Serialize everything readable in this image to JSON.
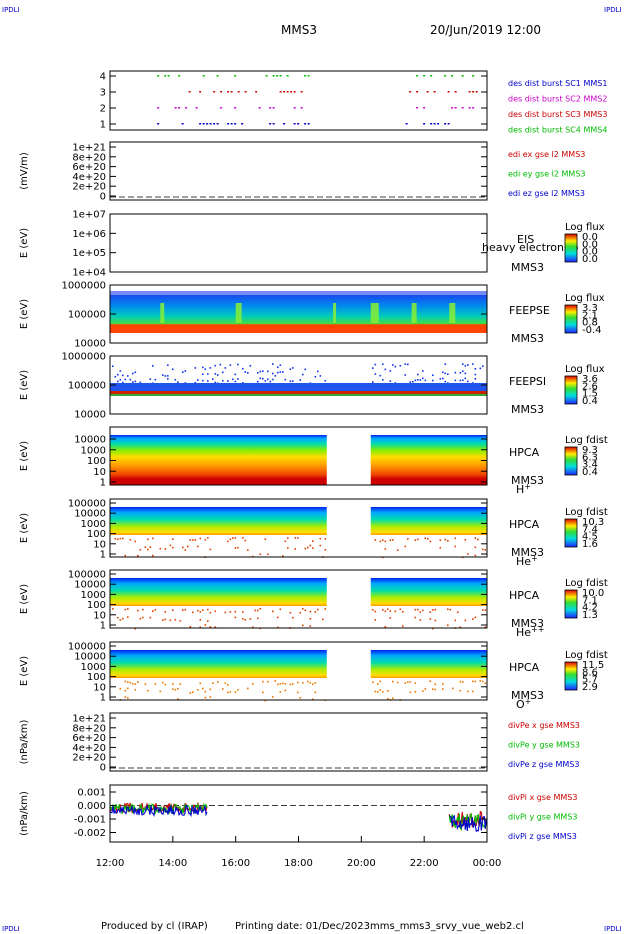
{
  "corner_mark": "IPDLI",
  "header": {
    "title": "MMS3",
    "date": "20/Jun/2019 12:00"
  },
  "footer": {
    "produced": "Produced by cl (IRAP)",
    "printing": "Printing date: 01/Dec/2023",
    "file": "mms_mms3_srvy_vue_web2.cl"
  },
  "chart_data": [
    {
      "type": "scatter",
      "ylabel": "",
      "yticks": [
        "4",
        "3",
        "2",
        "1"
      ],
      "legend": [
        {
          "text": "des dist burst SC1 MMS1",
          "color": "#0000cc"
        },
        {
          "text": "des dist burst SC2 MMS2",
          "color": "#cc00cc"
        },
        {
          "text": "des dist burst SC3 MMS3",
          "color": "#cc0000"
        },
        {
          "text": "des dist burst SC4 MMS4",
          "color": "#00bb00"
        }
      ]
    },
    {
      "type": "line",
      "ylabel": "(mV/m)",
      "yticks": [
        "1e+21",
        "8e+20",
        "6e+20",
        "4e+20",
        "2e+20",
        "0"
      ],
      "legend": [
        {
          "text": "edi ex gse l2 MMS3",
          "color": "#cc0000"
        },
        {
          "text": "edi ey gse l2 MMS3",
          "color": "#00bb00"
        },
        {
          "text": "edi ez gse l2 MMS3",
          "color": "#0000cc"
        }
      ]
    },
    {
      "type": "heatmap",
      "ylabel": "E (eV)",
      "yticks": [
        "1e+07",
        "1e+06",
        "1e+05",
        "1e+04"
      ],
      "labels": [
        "EIS",
        "MMS3"
      ],
      "overlay": "heavy electron to",
      "colorbar": {
        "title": "Log flux",
        "ticks": [
          "0.0",
          "0.0",
          "0.0",
          "0.0"
        ]
      }
    },
    {
      "type": "heatmap",
      "ylabel": "E (eV)",
      "yticks": [
        "1000000",
        "100000",
        "10000"
      ],
      "labels": [
        "FEEPSE",
        "MMS3"
      ],
      "colorbar": {
        "title": "Log flux",
        "ticks": [
          "3.3",
          "2.1",
          "0.8",
          "-0.4"
        ]
      }
    },
    {
      "type": "heatmap",
      "ylabel": "E (eV)",
      "yticks": [
        "1000000",
        "100000",
        "10000"
      ],
      "labels": [
        "FEEPSI",
        "MMS3"
      ],
      "colorbar": {
        "title": "Log flux",
        "ticks": [
          "3.6",
          "2.6",
          "1.5",
          "0.4"
        ]
      }
    },
    {
      "type": "heatmap",
      "ylabel": "E (eV)",
      "yticks": [
        "10000",
        "1000",
        "100",
        "10",
        "1"
      ],
      "labels": [
        "HPCA",
        "MMS3"
      ],
      "species": {
        "base": "H",
        "sup": "+"
      },
      "colorbar": {
        "title": "Log fdist",
        "ticks": [
          "9.3",
          "6.3",
          "3.4",
          "0.4"
        ]
      }
    },
    {
      "type": "heatmap",
      "ylabel": "E (eV)",
      "yticks": [
        "100000",
        "10000",
        "1000",
        "100",
        "10",
        "1"
      ],
      "labels": [
        "HPCA",
        "MMS3"
      ],
      "species": {
        "base": "He",
        "sup": "+"
      },
      "colorbar": {
        "title": "Log fdist",
        "ticks": [
          "10.3",
          "7.4",
          "4.5",
          "1.6"
        ]
      }
    },
    {
      "type": "heatmap",
      "ylabel": "E (eV)",
      "yticks": [
        "100000",
        "10000",
        "1000",
        "100",
        "10",
        "1"
      ],
      "labels": [
        "HPCA",
        "MMS3"
      ],
      "species": {
        "base": "He",
        "sup": "++"
      },
      "colorbar": {
        "title": "Log fdist",
        "ticks": [
          "10.0",
          "7.1",
          "4.2",
          "1.3"
        ]
      }
    },
    {
      "type": "heatmap",
      "ylabel": "E (eV)",
      "yticks": [
        "100000",
        "10000",
        "1000",
        "100",
        "10",
        "1"
      ],
      "labels": [
        "HPCA",
        "MMS3"
      ],
      "species": {
        "base": "O",
        "sup": "+"
      },
      "colorbar": {
        "title": "Log fdist",
        "ticks": [
          "11.5",
          "8.6",
          "5.7",
          "2.9"
        ]
      }
    },
    {
      "type": "line",
      "ylabel": "(nPa/km)",
      "yticks": [
        "1e+21",
        "8e+20",
        "6e+20",
        "4e+20",
        "2e+20",
        "0"
      ],
      "legend": [
        {
          "text": "divPe x gse MMS3",
          "color": "#cc0000"
        },
        {
          "text": "divPe y gse MMS3",
          "color": "#00bb00"
        },
        {
          "text": "divPe z gse MMS3",
          "color": "#0000cc"
        }
      ]
    },
    {
      "type": "line",
      "ylabel": "(nPa/km)",
      "yticks": [
        "0.001",
        "0.000",
        "-0.001",
        "-0.002"
      ],
      "legend": [
        {
          "text": "divPi x gse MMS3",
          "color": "#cc0000"
        },
        {
          "text": "divPi y gse MMS3",
          "color": "#00bb00"
        },
        {
          "text": "divPi z gse MMS3",
          "color": "#0000cc"
        }
      ]
    }
  ],
  "time_axis": {
    "ticks": [
      "12:00",
      "14:00",
      "16:00",
      "18:00",
      "20:00",
      "22:00",
      "00:00"
    ]
  }
}
